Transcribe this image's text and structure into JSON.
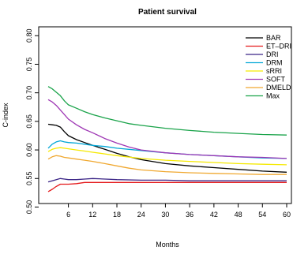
{
  "chart_data": {
    "type": "line",
    "title": "Patient survival",
    "xlabel": "Months",
    "ylabel": "C-index",
    "xlim": [
      1,
      60
    ],
    "ylim": [
      0.5,
      0.8
    ],
    "xticks": [
      6,
      12,
      18,
      24,
      30,
      36,
      42,
      48,
      54,
      60
    ],
    "yticks": [
      0.5,
      0.55,
      0.6,
      0.65,
      0.7,
      0.75,
      0.8
    ],
    "ytick_labels": [
      "0.50",
      "0.55",
      "0.60",
      "0.65",
      "0.70",
      "0.75",
      "0.80"
    ],
    "legend_position": "top-right",
    "grid": false,
    "series": [
      {
        "name": "BAR",
        "color": "#000000",
        "x": [
          1,
          2,
          3,
          4,
          5,
          6,
          8,
          10,
          12,
          15,
          18,
          21,
          24,
          30,
          36,
          42,
          48,
          54,
          60
        ],
        "y": [
          0.645,
          0.644,
          0.643,
          0.64,
          0.632,
          0.625,
          0.618,
          0.613,
          0.608,
          0.601,
          0.594,
          0.588,
          0.583,
          0.576,
          0.572,
          0.569,
          0.566,
          0.563,
          0.561
        ]
      },
      {
        "name": "ET–DRI",
        "color": "#e41a1c",
        "x": [
          1,
          2,
          3,
          4,
          5,
          6,
          8,
          10,
          12,
          15,
          18,
          24,
          30,
          36,
          42,
          48,
          54,
          60
        ],
        "y": [
          0.527,
          0.531,
          0.536,
          0.54,
          0.54,
          0.54,
          0.541,
          0.543,
          0.543,
          0.543,
          0.543,
          0.543,
          0.543,
          0.543,
          0.543,
          0.543,
          0.543,
          0.543
        ]
      },
      {
        "name": "DRI",
        "color": "#3a2486",
        "x": [
          1,
          2,
          3,
          4,
          5,
          6,
          8,
          10,
          12,
          15,
          18,
          24,
          30,
          36,
          42,
          48,
          54,
          60
        ],
        "y": [
          0.544,
          0.546,
          0.548,
          0.55,
          0.549,
          0.548,
          0.548,
          0.549,
          0.55,
          0.549,
          0.548,
          0.547,
          0.547,
          0.546,
          0.546,
          0.546,
          0.546,
          0.546
        ]
      },
      {
        "name": "DRM",
        "color": "#00a6d6",
        "x": [
          1,
          2,
          3,
          4,
          5,
          6,
          8,
          10,
          12,
          15,
          18,
          24,
          30,
          36,
          42,
          48,
          54,
          60
        ],
        "y": [
          0.603,
          0.61,
          0.614,
          0.616,
          0.614,
          0.613,
          0.612,
          0.61,
          0.608,
          0.606,
          0.603,
          0.599,
          0.595,
          0.592,
          0.59,
          0.588,
          0.586,
          0.585
        ]
      },
      {
        "name": "sRRI",
        "color": "#f5e900",
        "x": [
          1,
          2,
          3,
          4,
          5,
          6,
          8,
          10,
          12,
          15,
          18,
          24,
          30,
          36,
          42,
          48,
          54,
          60
        ],
        "y": [
          0.597,
          0.601,
          0.603,
          0.604,
          0.603,
          0.602,
          0.6,
          0.598,
          0.596,
          0.593,
          0.59,
          0.585,
          0.582,
          0.58,
          0.578,
          0.576,
          0.575,
          0.574
        ]
      },
      {
        "name": "SOFT",
        "color": "#9e36b4",
        "x": [
          1,
          2,
          3,
          4,
          5,
          6,
          8,
          10,
          12,
          15,
          18,
          21,
          24,
          30,
          36,
          42,
          48,
          54,
          60
        ],
        "y": [
          0.688,
          0.684,
          0.678,
          0.67,
          0.662,
          0.654,
          0.644,
          0.636,
          0.63,
          0.62,
          0.612,
          0.605,
          0.6,
          0.595,
          0.592,
          0.59,
          0.588,
          0.587,
          0.585
        ]
      },
      {
        "name": "DMELD",
        "color": "#f0a830",
        "x": [
          1,
          2,
          3,
          4,
          5,
          6,
          8,
          10,
          12,
          15,
          18,
          21,
          24,
          30,
          36,
          42,
          48,
          54,
          60
        ],
        "y": [
          0.584,
          0.588,
          0.59,
          0.589,
          0.587,
          0.586,
          0.584,
          0.582,
          0.58,
          0.576,
          0.572,
          0.568,
          0.565,
          0.562,
          0.56,
          0.559,
          0.558,
          0.557,
          0.557
        ]
      },
      {
        "name": "Max",
        "color": "#1aa34a",
        "x": [
          1,
          2,
          3,
          4,
          5,
          6,
          8,
          10,
          12,
          15,
          18,
          21,
          24,
          30,
          36,
          42,
          48,
          54,
          60
        ],
        "y": [
          0.711,
          0.707,
          0.701,
          0.695,
          0.686,
          0.679,
          0.673,
          0.667,
          0.662,
          0.656,
          0.651,
          0.646,
          0.643,
          0.638,
          0.634,
          0.631,
          0.629,
          0.627,
          0.626
        ]
      }
    ]
  }
}
